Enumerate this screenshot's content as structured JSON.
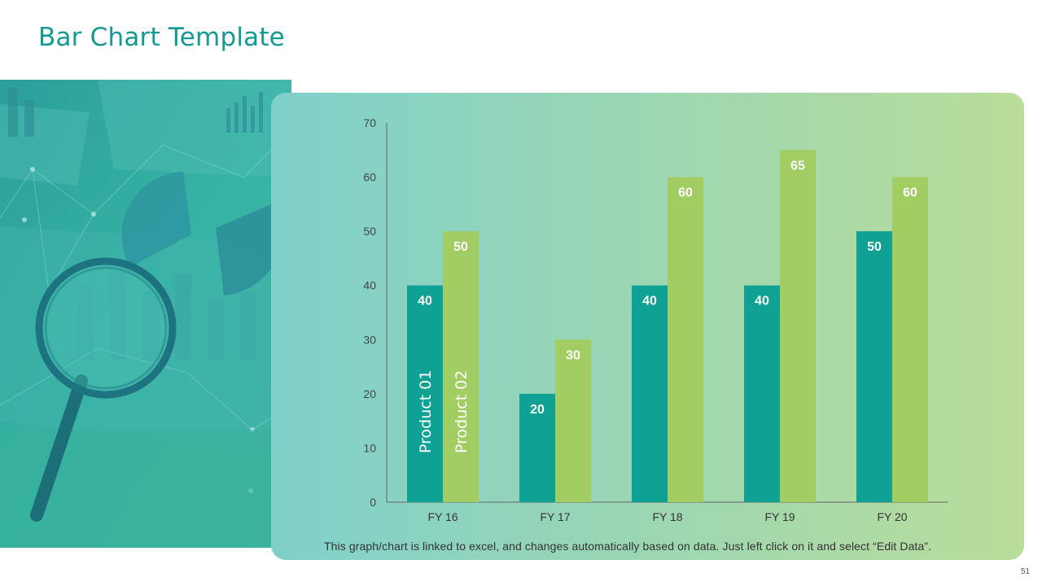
{
  "title": "Bar Chart Template",
  "footnote": "This graph/chart is linked to excel, and changes automatically  based on data. Just left click on it and select “Edit Data”.",
  "page_number": "51",
  "colors": {
    "accent": "#129a93",
    "product01": "#0ea194",
    "product02": "#a1cd63"
  },
  "chart_data": {
    "type": "bar",
    "categories": [
      "FY 16",
      "FY 17",
      "FY 18",
      "FY 19",
      "FY 20"
    ],
    "series": [
      {
        "name": "Product 01",
        "values": [
          40,
          20,
          40,
          40,
          50
        ]
      },
      {
        "name": "Product 02",
        "values": [
          50,
          30,
          60,
          65,
          60
        ]
      }
    ],
    "yticks": [
      "0",
      "10",
      "20",
      "30",
      "40",
      "50",
      "60",
      "70"
    ],
    "ylim": [
      0,
      70
    ],
    "title": "",
    "xlabel": "",
    "ylabel": "",
    "legend": "inside-first-bars"
  }
}
